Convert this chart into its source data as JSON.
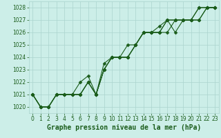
{
  "title": "Graphe pression niveau de la mer (hPa)",
  "bg_color": "#cceee8",
  "grid_color": "#aad4ce",
  "line_color": "#1a5c1a",
  "marker_color": "#1a5c1a",
  "xlabel_color": "#1a5c1a",
  "hours": [
    0,
    1,
    2,
    3,
    4,
    5,
    6,
    7,
    8,
    9,
    10,
    11,
    12,
    13,
    14,
    15,
    16,
    17,
    18,
    19,
    20,
    21,
    22,
    23
  ],
  "series": [
    [
      1021.0,
      1020.0,
      1020.0,
      1021.0,
      1021.0,
      1021.0,
      1021.0,
      1022.0,
      1021.0,
      1023.0,
      1024.0,
      1024.0,
      1024.0,
      1025.0,
      1026.0,
      1026.0,
      1026.0,
      1027.0,
      1026.0,
      1027.0,
      1027.0,
      1028.0,
      1028.0,
      1028.0
    ],
    [
      1021.0,
      1020.0,
      1020.0,
      1021.0,
      1021.0,
      1021.0,
      1021.0,
      1022.0,
      1021.0,
      1023.0,
      1024.0,
      1024.0,
      1024.0,
      1025.0,
      1026.0,
      1026.0,
      1026.0,
      1026.0,
      1027.0,
      1027.0,
      1027.0,
      1027.0,
      1028.0,
      1028.0
    ],
    [
      1021.0,
      1020.0,
      1020.0,
      1021.0,
      1021.0,
      1021.0,
      1021.0,
      1022.0,
      1021.0,
      1023.5,
      1024.0,
      1024.0,
      1025.0,
      1025.0,
      1026.0,
      1026.0,
      1026.0,
      1027.0,
      1027.0,
      1027.0,
      1027.0,
      1028.0,
      1028.0,
      1028.0
    ],
    [
      1021.0,
      1020.0,
      1020.0,
      1021.0,
      1021.0,
      1021.0,
      1022.0,
      1022.5,
      1021.0,
      1023.0,
      1024.0,
      1024.0,
      1024.0,
      1025.0,
      1026.0,
      1026.0,
      1026.5,
      1027.0,
      1027.0,
      1027.0,
      1027.0,
      1027.0,
      1028.0,
      1028.0
    ]
  ],
  "ylim": [
    1019.5,
    1028.5
  ],
  "yticks": [
    1020,
    1021,
    1022,
    1023,
    1024,
    1025,
    1026,
    1027,
    1028
  ],
  "xlim": [
    -0.5,
    23.5
  ],
  "xticks": [
    0,
    1,
    2,
    3,
    4,
    5,
    6,
    7,
    8,
    9,
    10,
    11,
    12,
    13,
    14,
    15,
    16,
    17,
    18,
    19,
    20,
    21,
    22,
    23
  ],
  "title_fontsize": 7.0,
  "tick_fontsize": 5.5,
  "marker_size": 2.5,
  "line_width": 0.8
}
